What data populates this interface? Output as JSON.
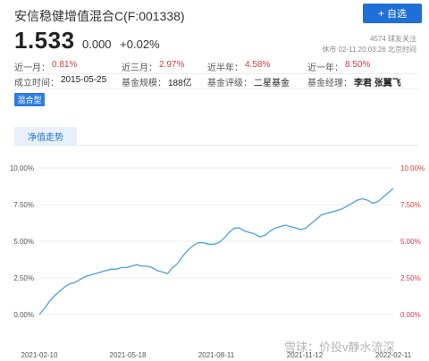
{
  "header": {
    "title": "安信稳健增值混合C(F:001338)",
    "add_button_icon": "plus-icon",
    "add_button_label": "自选",
    "followers": "4574 球友关注",
    "status_time": "休市 02-11 20:03:26 北京时间"
  },
  "quote": {
    "price": "1.533",
    "change": "0.000",
    "change_pct": "+0.02%"
  },
  "stats": {
    "row1": [
      {
        "label": "近一月：",
        "value": "0.81%"
      },
      {
        "label": "近三月：",
        "value": "2.97%"
      },
      {
        "label": "近半年：",
        "value": "4.58%"
      },
      {
        "label": "近一年：",
        "value": "8.50%"
      }
    ],
    "row2": [
      {
        "label": "成立时间：",
        "value": "2015-05-25"
      },
      {
        "label": "基金规模：",
        "value": "188亿"
      },
      {
        "label": "基金评级：",
        "value": "二星基金"
      },
      {
        "label": "基金经理：",
        "value": "李君 张翼飞"
      }
    ]
  },
  "badge": "混合型",
  "tab": "净值走势",
  "watermark": "雪球：价投v静水流深",
  "colors": {
    "accent": "#1f6fd6",
    "up": "#e03a3e",
    "line": "#4a9fe8"
  },
  "chart_data": {
    "type": "line",
    "x_ticks": [
      "2021-02-10",
      "2021-05-18",
      "2021-08-11",
      "2021-11-12",
      "2022-02-11"
    ],
    "y_ticks_left": [
      "10.00%",
      "7.50%",
      "5.00%",
      "2.50%",
      "0.00%"
    ],
    "y_ticks_right": [
      "10.00%",
      "7.50%",
      "5.00%",
      "2.50%",
      "0.00%"
    ],
    "ylim": [
      0,
      10
    ],
    "grid": true,
    "series": [
      {
        "values": [
          0.0,
          0.4,
          0.9,
          1.3,
          1.6,
          1.9,
          2.1,
          2.2,
          2.4,
          2.6,
          2.7,
          2.8,
          2.9,
          3.0,
          3.1,
          3.1,
          3.2,
          3.2,
          3.3,
          3.4,
          3.3,
          3.3,
          3.2,
          3.0,
          2.9,
          2.8,
          3.2,
          3.5,
          4.0,
          4.4,
          4.7,
          4.9,
          4.9,
          4.8,
          4.8,
          4.9,
          5.2,
          5.6,
          5.9,
          5.9,
          5.7,
          5.6,
          5.5,
          5.3,
          5.4,
          5.7,
          5.9,
          6.0,
          6.1,
          6.0,
          5.9,
          5.8,
          5.9,
          6.2,
          6.5,
          6.8,
          6.9,
          7.0,
          7.1,
          7.2,
          7.4,
          7.6,
          7.8,
          7.9,
          7.8,
          7.6,
          7.7,
          8.0,
          8.3,
          8.6
        ]
      }
    ]
  }
}
